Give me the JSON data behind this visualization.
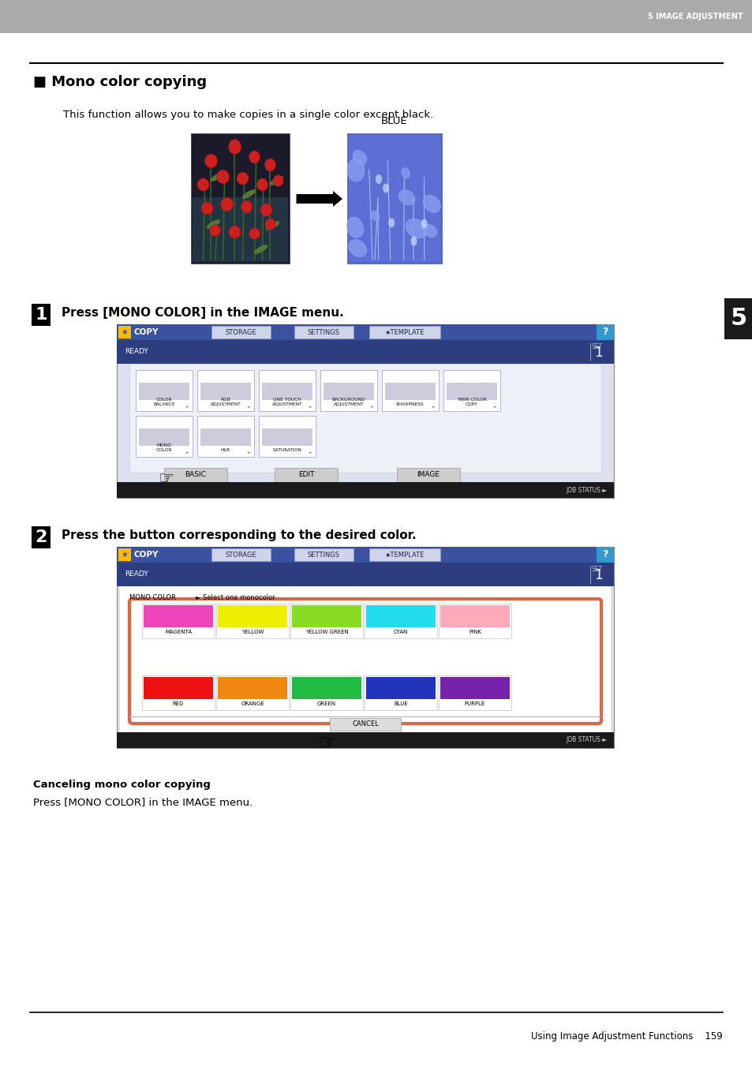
{
  "page_bg": "#ffffff",
  "header_bg": "#aaaaaa",
  "header_text": "5 IMAGE ADJUSTMENT",
  "header_text_color": "#ffffff",
  "sidebar_bg": "#1a1a1a",
  "sidebar_text": "5",
  "sidebar_text_color": "#ffffff",
  "section_title": "■ Mono color copying",
  "section_desc": "This function allows you to make copies in a single color except black.",
  "blue_label": "BLUE",
  "step1_number": "1",
  "step1_text": "Press [MONO COLOR] in the IMAGE menu.",
  "step2_number": "2",
  "step2_text": "Press the button corresponding to the desired color.",
  "cancel_title": "Canceling mono color copying",
  "cancel_desc": "Press [MONO COLOR] in the IMAGE menu.",
  "footer_text": "Using Image Adjustment Functions    159",
  "sc_topbar_color": "#3a52a0",
  "sc_tab_bg": "#d4d4d4",
  "sc_tab_border": "#aaaaaa",
  "sc_q_color": "#3399cc",
  "sc_body_bg": "#3a52a0",
  "sc_inner_bg": "#e8eaf0",
  "sc_icon_bg": "#f0f0f0",
  "sc_icon_border": "#cccccc",
  "sc_row2_bg": "#d8dae8",
  "sc_jobstatus_bg": "#222222",
  "sc_jobstatus_text": "#cccccc",
  "sel_border_color": "#e05030",
  "btn_colors_row1": [
    "#ee44bb",
    "#eeee00",
    "#88dd22",
    "#22ddee",
    "#ffaabb"
  ],
  "btn_labels_row1": [
    "MAGENTA",
    "YELLOW",
    "YELLOW GREEN",
    "CYAN",
    "PINK"
  ],
  "btn_colors_row2": [
    "#ee1111",
    "#ee8811",
    "#22bb44",
    "#2233bb",
    "#7722aa"
  ],
  "btn_labels_row2": [
    "RED",
    "ORANGE",
    "GREEN",
    "BLUE",
    "PURPLE"
  ]
}
